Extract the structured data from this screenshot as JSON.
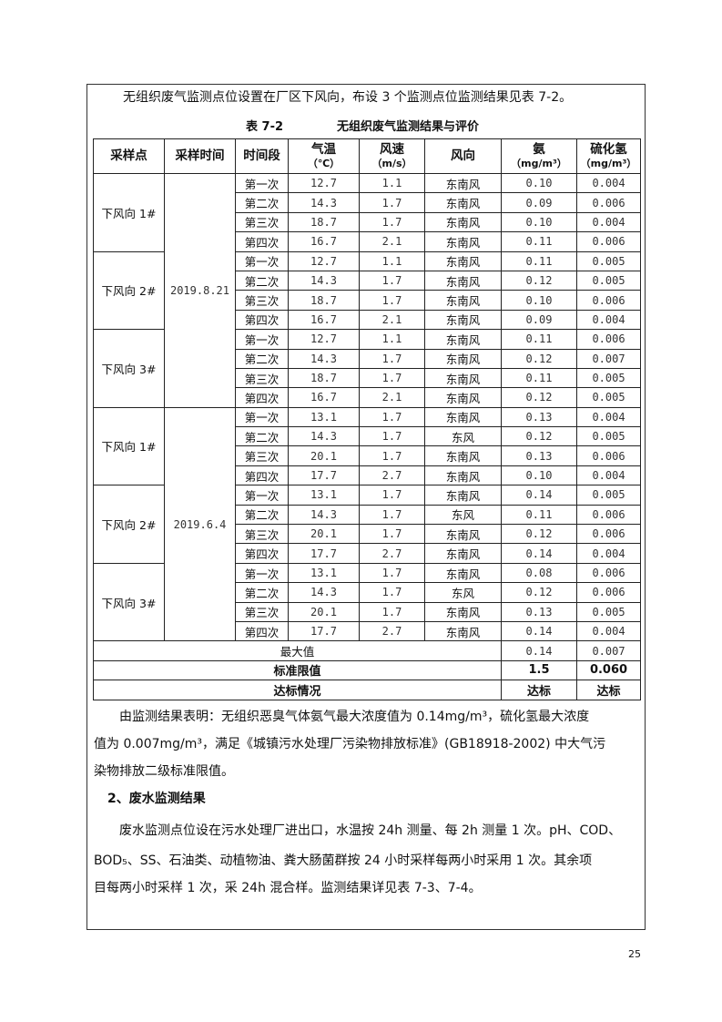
{
  "intro": "无组织废气监测点位设置在厂区下风向，布设 3 个监测点位监测结果见表 7-2。",
  "table_caption": {
    "number": "表 7-2",
    "title": "无组织废气监测结果与评价"
  },
  "table": {
    "headers": [
      "采样点",
      "采样时间",
      "时间段",
      "气温",
      "风速",
      "风向",
      "氨",
      "硫化氢"
    ],
    "units": [
      "",
      "",
      "",
      "（℃）",
      "（m/s）",
      "",
      "（mg/m³）",
      "（mg/m³）"
    ],
    "groups": [
      {
        "date": "2019.8.21",
        "points": [
          {
            "name": "下风向 1#",
            "rows": [
              [
                "第一次",
                "12.7",
                "1.1",
                "东南风",
                "0.10",
                "0.004"
              ],
              [
                "第二次",
                "14.3",
                "1.7",
                "东南风",
                "0.09",
                "0.006"
              ],
              [
                "第三次",
                "18.7",
                "1.7",
                "东南风",
                "0.10",
                "0.004"
              ],
              [
                "第四次",
                "16.7",
                "2.1",
                "东南风",
                "0.11",
                "0.006"
              ]
            ]
          },
          {
            "name": "下风向 2#",
            "rows": [
              [
                "第一次",
                "12.7",
                "1.1",
                "东南风",
                "0.11",
                "0.005"
              ],
              [
                "第二次",
                "14.3",
                "1.7",
                "东南风",
                "0.12",
                "0.005"
              ],
              [
                "第三次",
                "18.7",
                "1.7",
                "东南风",
                "0.10",
                "0.006"
              ],
              [
                "第四次",
                "16.7",
                "2.1",
                "东南风",
                "0.09",
                "0.004"
              ]
            ]
          },
          {
            "name": "下风向 3#",
            "rows": [
              [
                "第一次",
                "12.7",
                "1.1",
                "东南风",
                "0.11",
                "0.006"
              ],
              [
                "第二次",
                "14.3",
                "1.7",
                "东南风",
                "0.12",
                "0.007"
              ],
              [
                "第三次",
                "18.7",
                "1.7",
                "东南风",
                "0.11",
                "0.005"
              ],
              [
                "第四次",
                "16.7",
                "2.1",
                "东南风",
                "0.12",
                "0.005"
              ]
            ]
          }
        ]
      },
      {
        "date": "2019.6.4",
        "points": [
          {
            "name": "下风向 1#",
            "rows": [
              [
                "第一次",
                "13.1",
                "1.7",
                "东南风",
                "0.13",
                "0.004"
              ],
              [
                "第二次",
                "14.3",
                "1.7",
                "东风",
                "0.12",
                "0.005"
              ],
              [
                "第三次",
                "20.1",
                "1.7",
                "东南风",
                "0.13",
                "0.006"
              ],
              [
                "第四次",
                "17.7",
                "2.7",
                "东南风",
                "0.10",
                "0.004"
              ]
            ]
          },
          {
            "name": "下风向 2#",
            "rows": [
              [
                "第一次",
                "13.1",
                "1.7",
                "东南风",
                "0.14",
                "0.005"
              ],
              [
                "第二次",
                "14.3",
                "1.7",
                "东风",
                "0.11",
                "0.006"
              ],
              [
                "第三次",
                "20.1",
                "1.7",
                "东南风",
                "0.12",
                "0.006"
              ],
              [
                "第四次",
                "17.7",
                "2.7",
                "东南风",
                "0.14",
                "0.004"
              ]
            ]
          },
          {
            "name": "下风向 3#",
            "rows": [
              [
                "第一次",
                "13.1",
                "1.7",
                "东南风",
                "0.08",
                "0.006"
              ],
              [
                "第二次",
                "14.3",
                "1.7",
                "东风",
                "0.12",
                "0.006"
              ],
              [
                "第三次",
                "20.1",
                "1.7",
                "东南风",
                "0.13",
                "0.005"
              ],
              [
                "第四次",
                "17.7",
                "2.7",
                "东南风",
                "0.14",
                "0.004"
              ]
            ]
          }
        ]
      }
    ],
    "summary": [
      {
        "label": "最大值",
        "nh3": "0.14",
        "h2s": "0.007",
        "bold": false
      },
      {
        "label": "标准限值",
        "nh3": "1.5",
        "h2s": "0.060",
        "bold": true
      },
      {
        "label": "达标情况",
        "nh3": "达标",
        "h2s": "达标",
        "bold": true
      }
    ]
  },
  "conclusion": [
    "　　由监测结果表明：无组织恶臭气体氨气最大浓度值为 0.14mg/m³，硫化氢最大浓度",
    "值为 0.007mg/m³，满足《城镇污水处理厂污染物排放标准》(GB18918-2002) 中大气污",
    "染物排放二级标准限值。"
  ],
  "section_heading": "2、废水监测结果",
  "wastewater": [
    "　　废水监测点位设在污水处理厂进出口，水温按 24h 测量、每 2h 测量 1 次。pH、COD、",
    "BOD₅、SS、石油类、动植物油、粪大肠菌群按 24 小时采样每两小时采用 1 次。其余项",
    "目每两小时采样 1 次，采 24h 混合样。监测结果详见表 7-3、7-4。"
  ],
  "page_number": "25"
}
